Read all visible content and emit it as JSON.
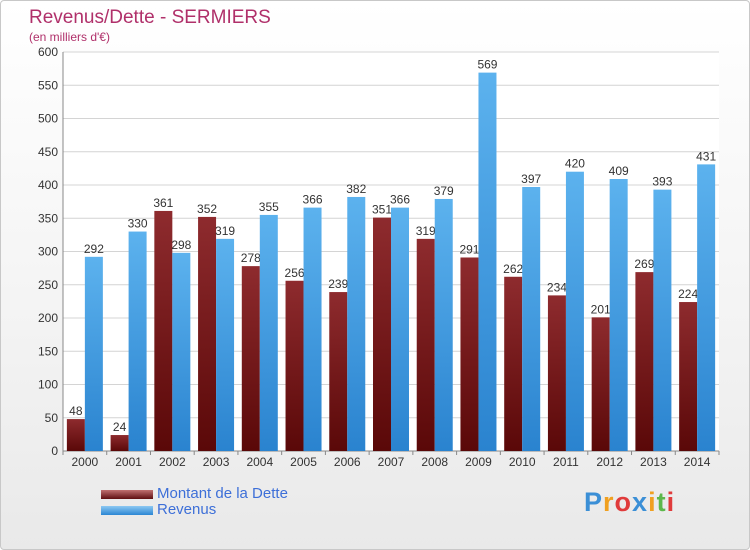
{
  "header": {
    "title": "Revenus/Dette - SERMIERS",
    "subtitle": "(en milliers d'€)"
  },
  "chart_data": {
    "type": "bar",
    "categories": [
      "2000",
      "2001",
      "2002",
      "2003",
      "2004",
      "2005",
      "2006",
      "2007",
      "2008",
      "2009",
      "2010",
      "2011",
      "2012",
      "2013",
      "2014"
    ],
    "series": [
      {
        "name": "Montant de la Dette",
        "color": "#7a1a1c",
        "values": [
          48,
          24,
          361,
          352,
          278,
          256,
          239,
          351,
          319,
          291,
          262,
          234,
          201,
          269,
          224
        ]
      },
      {
        "name": "Revenus",
        "color": "#3b9ae1",
        "values": [
          292,
          330,
          298,
          319,
          355,
          366,
          382,
          366,
          379,
          569,
          397,
          420,
          409,
          393,
          431
        ]
      }
    ],
    "ylim": [
      0,
      600
    ],
    "yticks": [
      0,
      50,
      100,
      150,
      200,
      250,
      300,
      350,
      400,
      450,
      500,
      550,
      600
    ],
    "grid": true,
    "legend_position": "bottom-left"
  },
  "legend": {
    "debt_label": "Montant de la Dette",
    "revenue_label": "Revenus"
  },
  "logo": {
    "letters": [
      "P",
      "r",
      "o",
      "x",
      "i",
      "t",
      "i"
    ],
    "colors": [
      "#3b8fd6",
      "#f0a020",
      "#e03b3b",
      "#3b8fd6",
      "#f0a020",
      "#5db84c",
      "#e03b3b"
    ]
  }
}
